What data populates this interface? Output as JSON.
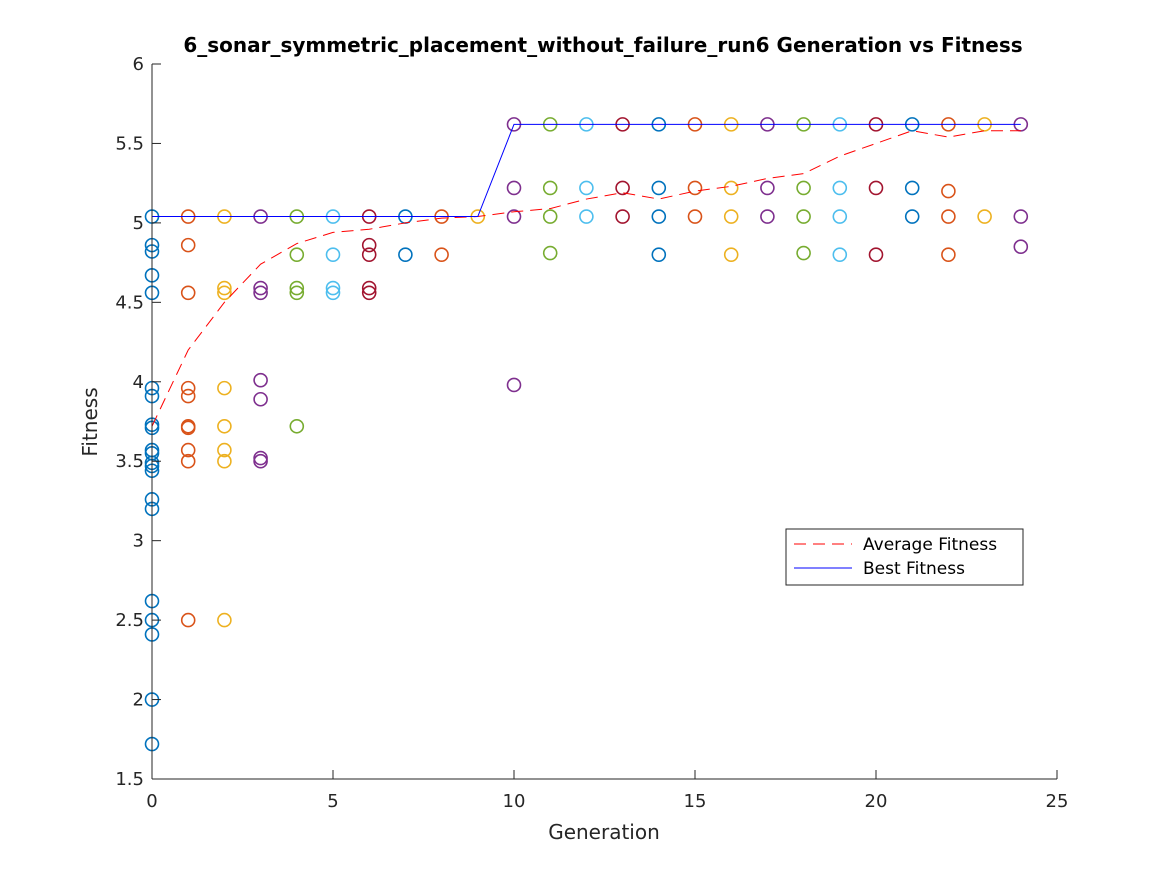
{
  "chart_data": {
    "type": "scatter",
    "title": "6_sonar_symmetric_placement_without_failure_run6 Generation vs Fitness",
    "xlabel": "Generation",
    "ylabel": "Fitness",
    "xlim": [
      0,
      25
    ],
    "ylim": [
      1.5,
      6
    ],
    "xticks": [
      "0",
      "5",
      "10",
      "15",
      "20",
      "25"
    ],
    "yticks": [
      "1.5",
      "2",
      "2.5",
      "3",
      "3.5",
      "4",
      "4.5",
      "5",
      "5.5",
      "6"
    ],
    "grid": false,
    "legend_position": "right",
    "generation_colors": [
      "#0072BD",
      "#D95319",
      "#EDB120",
      "#7E2F8E",
      "#77AC30",
      "#4DBEEE",
      "#A2142F"
    ],
    "points": [
      [
        0,
        5.04
      ],
      [
        0,
        4.86
      ],
      [
        0,
        4.82
      ],
      [
        0,
        4.67
      ],
      [
        0,
        4.56
      ],
      [
        0,
        3.96
      ],
      [
        0,
        3.91
      ],
      [
        0,
        3.73
      ],
      [
        0,
        3.71
      ],
      [
        0,
        3.57
      ],
      [
        0,
        3.55
      ],
      [
        0,
        3.49
      ],
      [
        0,
        3.47
      ],
      [
        0,
        3.44
      ],
      [
        0,
        3.26
      ],
      [
        0,
        3.2
      ],
      [
        0,
        2.62
      ],
      [
        0,
        2.5
      ],
      [
        0,
        2.41
      ],
      [
        0,
        2.0
      ],
      [
        0,
        1.72
      ],
      [
        1,
        5.04
      ],
      [
        1,
        4.86
      ],
      [
        1,
        4.56
      ],
      [
        1,
        3.96
      ],
      [
        1,
        3.91
      ],
      [
        1,
        3.72
      ],
      [
        1,
        3.71
      ],
      [
        1,
        3.57
      ],
      [
        1,
        3.5
      ],
      [
        1,
        2.5
      ],
      [
        2,
        5.04
      ],
      [
        2,
        4.59
      ],
      [
        2,
        4.56
      ],
      [
        2,
        3.96
      ],
      [
        2,
        3.72
      ],
      [
        2,
        3.57
      ],
      [
        2,
        3.5
      ],
      [
        2,
        2.5
      ],
      [
        3,
        5.04
      ],
      [
        3,
        4.59
      ],
      [
        3,
        4.56
      ],
      [
        3,
        4.01
      ],
      [
        3,
        3.89
      ],
      [
        3,
        3.52
      ],
      [
        3,
        3.5
      ],
      [
        4,
        5.04
      ],
      [
        4,
        4.8
      ],
      [
        4,
        4.59
      ],
      [
        4,
        4.56
      ],
      [
        4,
        3.72
      ],
      [
        5,
        5.04
      ],
      [
        5,
        4.8
      ],
      [
        5,
        4.59
      ],
      [
        5,
        4.56
      ],
      [
        6,
        5.04
      ],
      [
        6,
        4.86
      ],
      [
        6,
        4.8
      ],
      [
        6,
        4.59
      ],
      [
        6,
        4.56
      ],
      [
        7,
        5.04
      ],
      [
        7,
        4.8
      ],
      [
        8,
        5.04
      ],
      [
        8,
        4.8
      ],
      [
        9,
        5.04
      ],
      [
        10,
        5.62
      ],
      [
        10,
        5.22
      ],
      [
        10,
        5.04
      ],
      [
        10,
        3.98
      ],
      [
        11,
        5.62
      ],
      [
        11,
        5.22
      ],
      [
        11,
        5.04
      ],
      [
        11,
        4.81
      ],
      [
        12,
        5.62
      ],
      [
        12,
        5.22
      ],
      [
        12,
        5.04
      ],
      [
        13,
        5.62
      ],
      [
        13,
        5.22
      ],
      [
        13,
        5.04
      ],
      [
        14,
        5.62
      ],
      [
        14,
        5.22
      ],
      [
        14,
        5.04
      ],
      [
        14,
        4.8
      ],
      [
        15,
        5.62
      ],
      [
        15,
        5.22
      ],
      [
        15,
        5.04
      ],
      [
        16,
        5.62
      ],
      [
        16,
        5.22
      ],
      [
        16,
        5.04
      ],
      [
        16,
        4.8
      ],
      [
        17,
        5.62
      ],
      [
        17,
        5.22
      ],
      [
        17,
        5.04
      ],
      [
        18,
        5.62
      ],
      [
        18,
        5.22
      ],
      [
        18,
        5.04
      ],
      [
        18,
        4.81
      ],
      [
        19,
        5.62
      ],
      [
        19,
        5.22
      ],
      [
        19,
        5.04
      ],
      [
        19,
        4.8
      ],
      [
        20,
        5.62
      ],
      [
        20,
        5.22
      ],
      [
        20,
        4.8
      ],
      [
        21,
        5.62
      ],
      [
        21,
        5.22
      ],
      [
        21,
        5.04
      ],
      [
        22,
        5.62
      ],
      [
        22,
        5.2
      ],
      [
        22,
        5.04
      ],
      [
        22,
        4.8
      ],
      [
        23,
        5.62
      ],
      [
        23,
        5.04
      ],
      [
        24,
        5.62
      ],
      [
        24,
        5.04
      ],
      [
        24,
        4.85
      ]
    ],
    "series": [
      {
        "name": "Average Fitness",
        "color": "#FF0000",
        "line_style": "dashed",
        "x": [
          0,
          1,
          2,
          3,
          4,
          5,
          6,
          7,
          8,
          9,
          10,
          11,
          12,
          13,
          14,
          15,
          16,
          17,
          18,
          19,
          20,
          21,
          22,
          23,
          24
        ],
        "values": [
          3.72,
          4.2,
          4.5,
          4.74,
          4.87,
          4.94,
          4.96,
          5.0,
          5.03,
          5.04,
          5.07,
          5.09,
          5.15,
          5.19,
          5.15,
          5.2,
          5.23,
          5.28,
          5.31,
          5.42,
          5.5,
          5.58,
          5.54,
          5.58,
          5.58
        ]
      },
      {
        "name": "Best Fitness",
        "color": "#0000FF",
        "line_style": "solid",
        "x": [
          0,
          1,
          2,
          3,
          4,
          5,
          6,
          7,
          8,
          9,
          10,
          11,
          12,
          13,
          14,
          15,
          16,
          17,
          18,
          19,
          20,
          21,
          22,
          23,
          24
        ],
        "values": [
          5.04,
          5.04,
          5.04,
          5.04,
          5.04,
          5.04,
          5.04,
          5.04,
          5.04,
          5.04,
          5.62,
          5.62,
          5.62,
          5.62,
          5.62,
          5.62,
          5.62,
          5.62,
          5.62,
          5.62,
          5.62,
          5.62,
          5.62,
          5.62,
          5.62
        ]
      }
    ]
  }
}
